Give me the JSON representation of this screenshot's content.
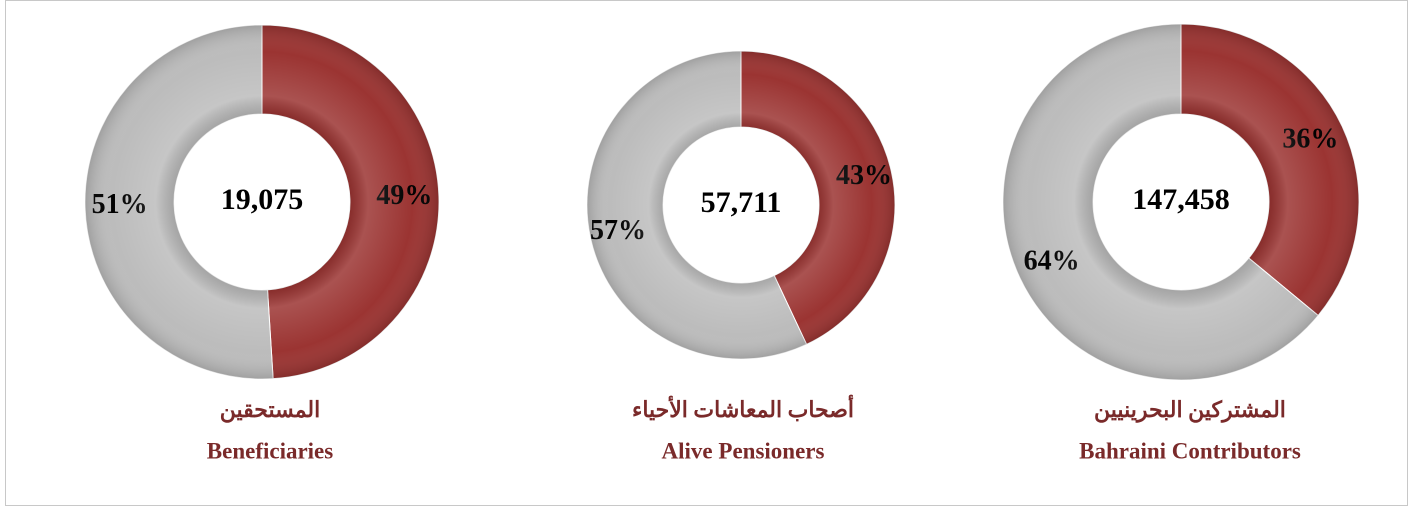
{
  "chart_data": [
    {
      "type": "donut",
      "title": "المستحقين",
      "subtitle": "Beneficiaries",
      "total": {
        "value": 19075,
        "label": "19,075"
      },
      "values": [
        49,
        51
      ],
      "value_labels": [
        "49%",
        "51%"
      ],
      "colors": [
        "#9b3432",
        "#bcbcbc"
      ]
    },
    {
      "type": "donut",
      "title": "أصحاب المعاشات الأحياء",
      "subtitle": "Alive  Pensioners",
      "total": {
        "value": 57711,
        "label": "57,711"
      },
      "values": [
        43,
        57
      ],
      "value_labels": [
        "43%",
        "57%"
      ],
      "colors": [
        "#9b3432",
        "#bcbcbc"
      ]
    },
    {
      "type": "donut",
      "title": "المشتركين البحرينيين",
      "subtitle": "Bahraini Contributors",
      "total": {
        "value": 147458,
        "label": "147,458"
      },
      "values": [
        36,
        64
      ],
      "value_labels": [
        "36%",
        "64%"
      ],
      "colors": [
        "#9b3432",
        "#bcbcbc"
      ]
    }
  ]
}
